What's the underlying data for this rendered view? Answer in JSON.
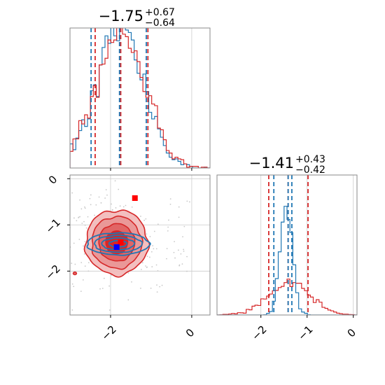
{
  "chart_data": {
    "type": "corner",
    "parameters": 2,
    "colors": {
      "series_a": "#d62728",
      "series_b": "#1f77b4",
      "marker_a": "#ff0000",
      "marker_b": "#0000ff"
    },
    "panels": [
      {
        "id": "marginal_x",
        "type": "histogram",
        "xlim": [
          -3.0,
          0.45
        ],
        "title": {
          "median": "−1.75",
          "upper": "+0.67",
          "lower": "−0.64"
        },
        "x_tick_values": [
          -2,
          0
        ],
        "quantiles": {
          "series_a": [
            -2.38,
            -1.75,
            -1.08
          ],
          "series_b": [
            -2.48,
            -1.78,
            -1.12
          ]
        },
        "grid": true
      },
      {
        "id": "joint",
        "type": "scatter_contour",
        "xlim": [
          -3.0,
          0.45
        ],
        "ylim": [
          -2.95,
          0.08
        ],
        "x_tick_values": [
          -2,
          0
        ],
        "x_tick_labels": [
          "−2",
          "0"
        ],
        "y_tick_values": [
          0,
          -1,
          -2
        ],
        "y_tick_labels": [
          "0",
          "−1",
          "−2"
        ],
        "markers": [
          {
            "series": "series_a",
            "x": -1.4,
            "y": -0.42
          },
          {
            "series": "series_a",
            "x": -1.75,
            "y": -1.38
          },
          {
            "series": "series_b",
            "x": -1.85,
            "y": -1.48
          }
        ],
        "series_a": {
          "center": [
            -1.85,
            -1.38
          ],
          "sigma": [
            0.7,
            0.45
          ]
        },
        "series_b": {
          "center": [
            -1.85,
            -1.38
          ],
          "sigma": [
            0.72,
            0.14
          ]
        },
        "grid": true
      },
      {
        "id": "marginal_y",
        "type": "histogram",
        "xlim": [
          -2.95,
          0.08
        ],
        "title": {
          "median": "−1.41",
          "upper": "+0.43",
          "lower": "−0.42"
        },
        "x_tick_values": [
          -2,
          -1,
          0
        ],
        "x_tick_labels": [
          "−2",
          "−1",
          "0"
        ],
        "quantiles": {
          "series_a": [
            -1.83,
            -1.41,
            -0.98
          ],
          "series_b": [
            -1.72,
            -1.41,
            -1.33
          ]
        },
        "grid": true
      }
    ]
  }
}
